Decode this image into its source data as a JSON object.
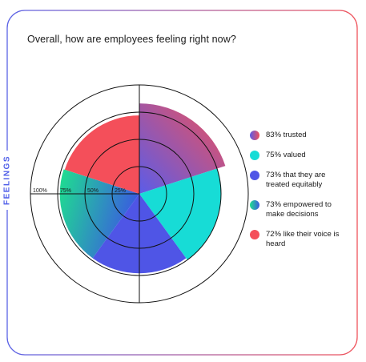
{
  "question": "Overall, how are employees feeling right now?",
  "side_label": "FEELINGS",
  "colors": {
    "frame_left": "#5b63e6",
    "frame_right": "#f0545c"
  },
  "legend": [
    {
      "label": "83% trusted",
      "color_a": "#5b5ce8",
      "color_b": "#f0505a"
    },
    {
      "label": "75% valued",
      "color_a": "#17dcd6",
      "color_b": "#17dcd6"
    },
    {
      "label": "73% that they are treated equitably",
      "color_a": "#4f55e6",
      "color_b": "#4f55e6"
    },
    {
      "label": "73% empowered to make decisions",
      "color_a": "#1ee08e",
      "color_b": "#3a5be0"
    },
    {
      "label": "72% like their voice is heard",
      "color_a": "#f44f5a",
      "color_b": "#f44f5a"
    }
  ],
  "chart_data": {
    "type": "polar-area",
    "title": "Overall, how are employees feeling right now?",
    "categories": [
      "trusted",
      "valued",
      "that they are treated equitably",
      "empowered to make decisions",
      "like their voice is heard"
    ],
    "values": [
      83,
      75,
      73,
      73,
      72
    ],
    "unit": "%",
    "radial_ticks": [
      "100%",
      "75%",
      "50%",
      "25%"
    ],
    "radial_tick_values": [
      100,
      75,
      50,
      25
    ],
    "rlim": [
      0,
      100
    ],
    "legend_position": "right",
    "series_colors": [
      "#5b5ce8-#f0505a",
      "#17dcd6",
      "#4f55e6",
      "#1ee08e-#3a5be0",
      "#f44f5a"
    ]
  }
}
